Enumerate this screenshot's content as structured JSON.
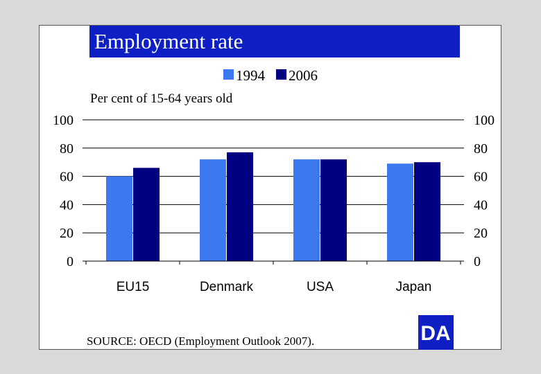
{
  "chart_data": {
    "type": "bar",
    "title": "Employment rate",
    "unit_label": "Per cent of 15-64 years old",
    "categories": [
      "EU15",
      "Denmark",
      "USA",
      "Japan"
    ],
    "series": [
      {
        "name": "1994",
        "color": "#3c78f0",
        "values": [
          60,
          72,
          72,
          69
        ]
      },
      {
        "name": "2006",
        "color": "#000080",
        "values": [
          66,
          77,
          72,
          70
        ]
      }
    ],
    "ylim": [
      0,
      100
    ],
    "yticks": [
      0,
      20,
      40,
      60,
      80,
      100
    ],
    "legend_position": "top",
    "grid": true
  },
  "source": "SOURCE: OECD (Employment Outlook 2007).",
  "logo": {
    "text": "DA",
    "color": "#0e1fc4"
  }
}
